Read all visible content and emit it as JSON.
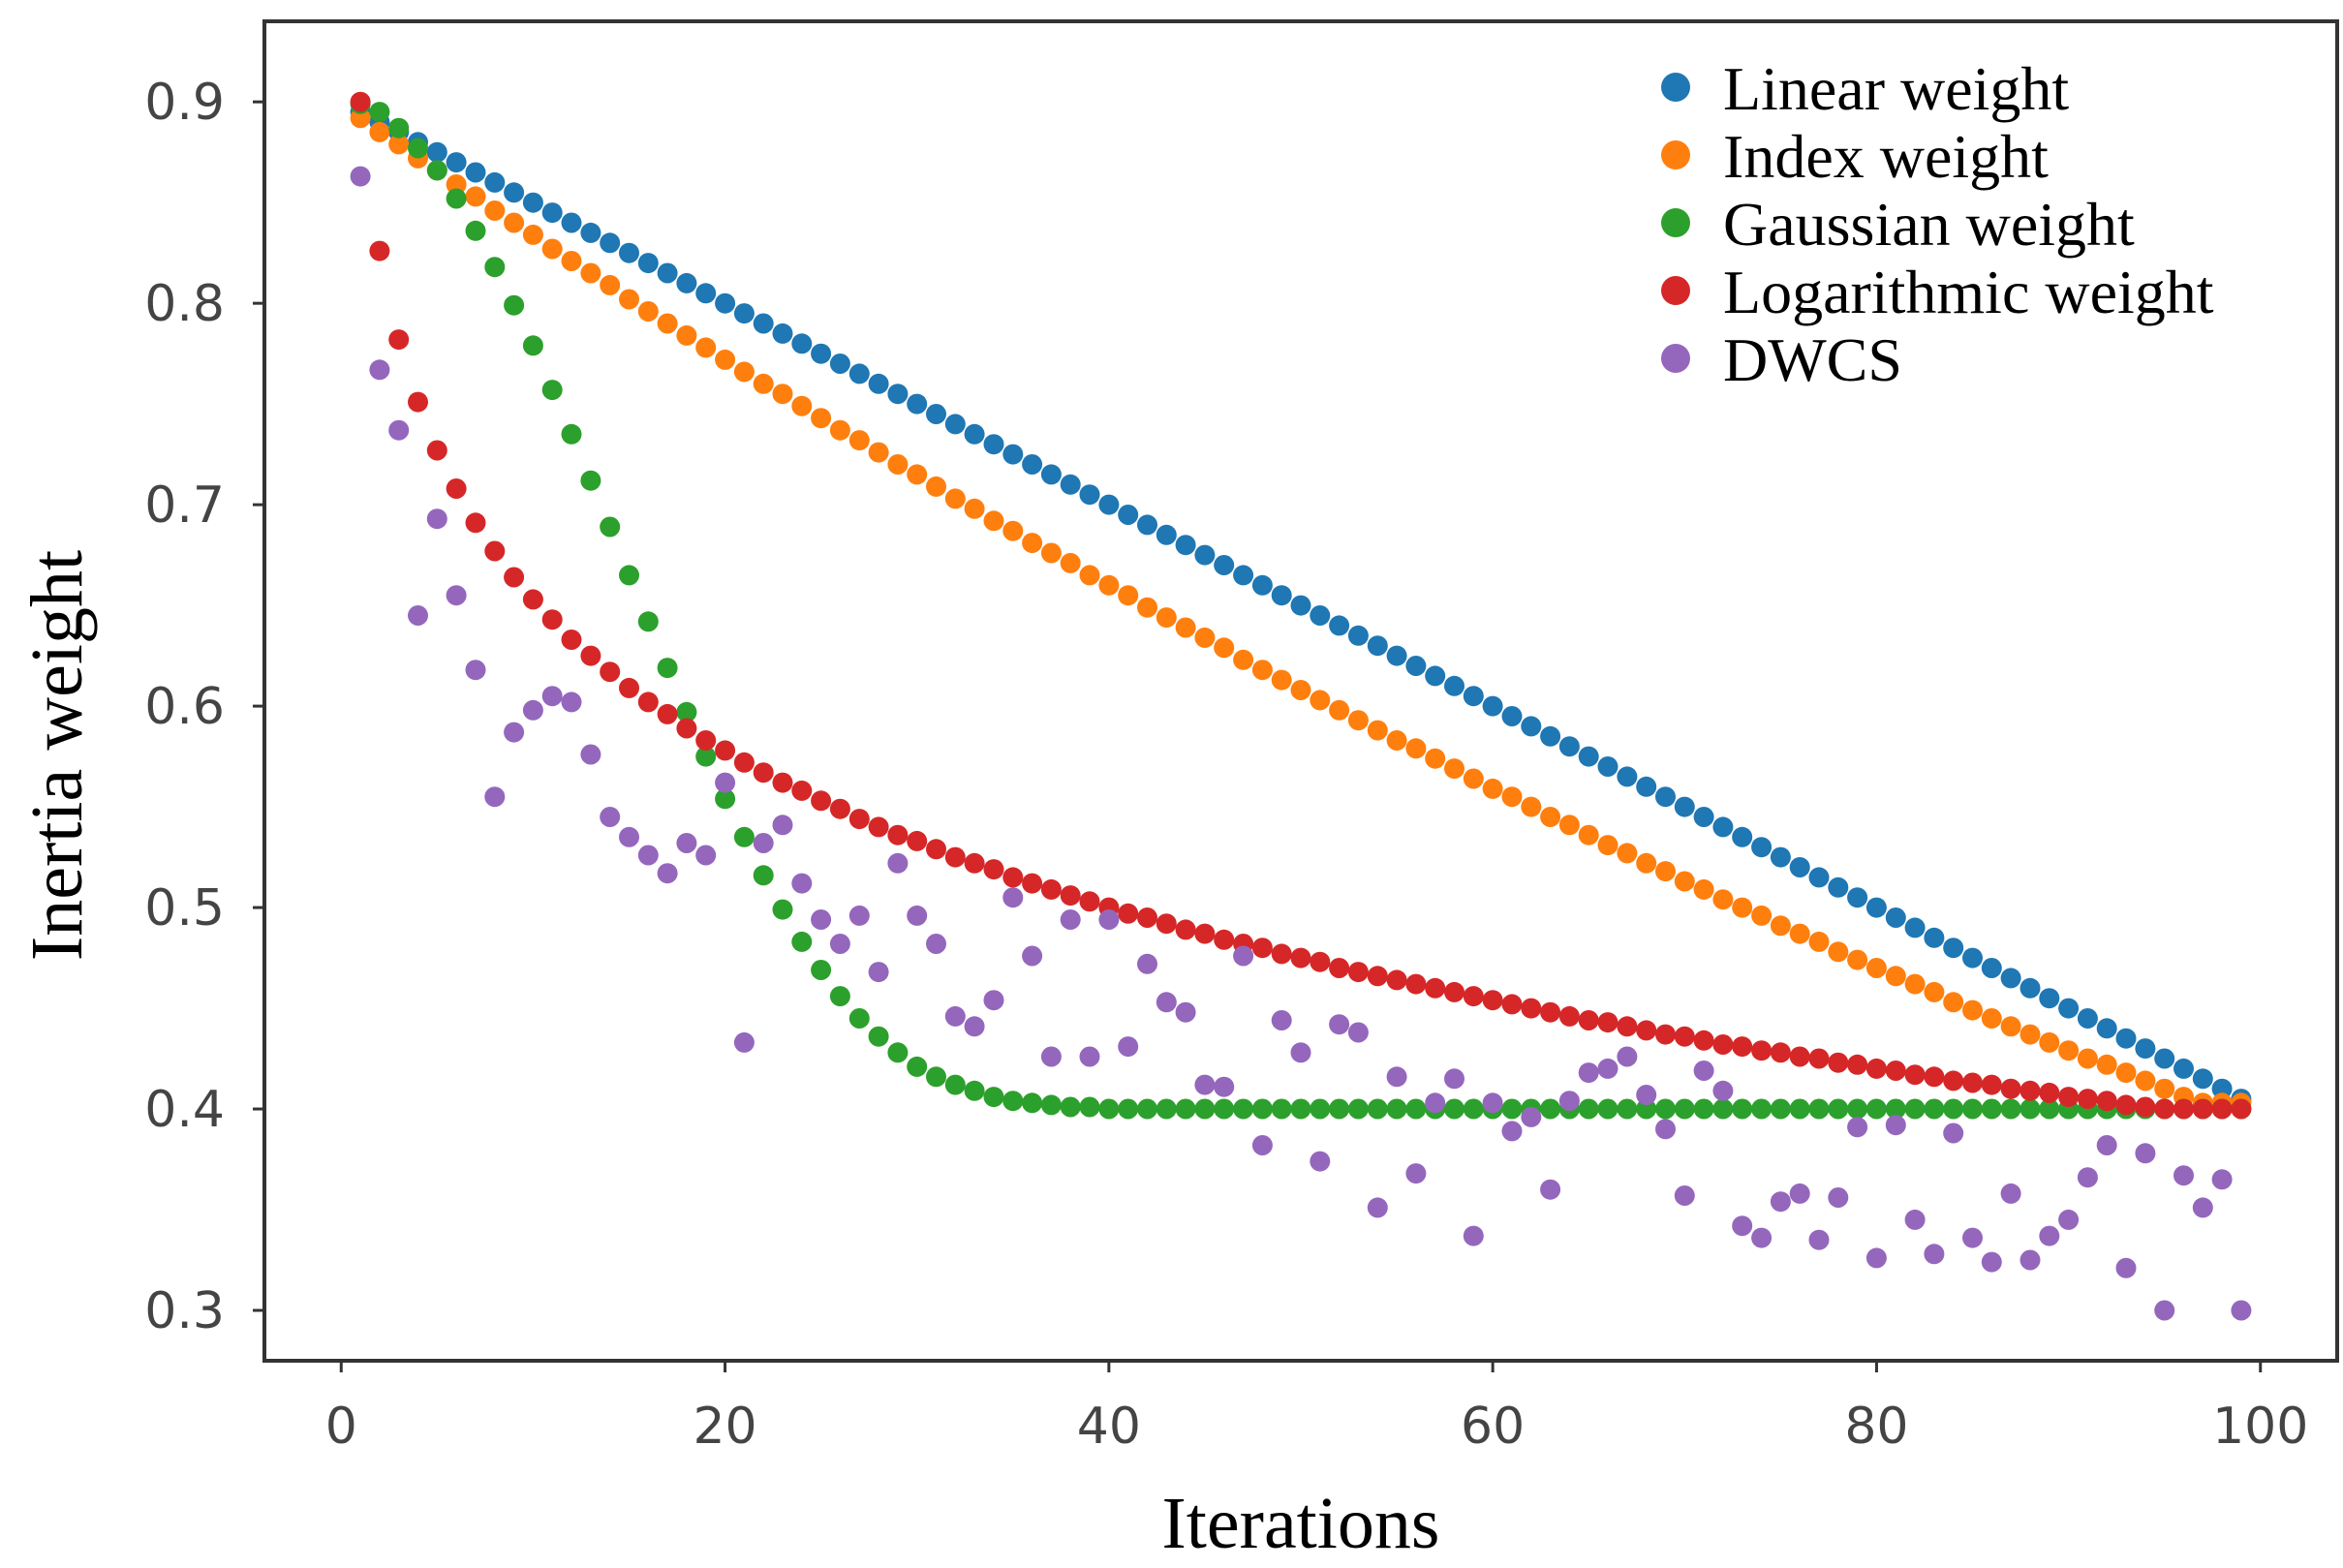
{
  "chart_data": {
    "type": "scatter",
    "title": "",
    "xlabel": "Iterations",
    "ylabel": "Inertia weight",
    "xlim": [
      -4,
      104
    ],
    "ylim": [
      0.275,
      0.94
    ],
    "xticks": [
      0,
      20,
      40,
      60,
      80,
      100
    ],
    "xtick_labels": [
      "0",
      "20",
      "40",
      "60",
      "80",
      "100"
    ],
    "yticks": [
      0.3,
      0.4,
      0.5,
      0.6,
      0.7,
      0.8,
      0.9
    ],
    "ytick_labels": [
      "0.3",
      "0.4",
      "0.5",
      "0.6",
      "0.7",
      "0.8",
      "0.9"
    ],
    "grid": false,
    "legend_position": "top-right",
    "series": [
      {
        "name": "Linear weight",
        "color": "#1f77b4",
        "x": [
          1,
          2,
          3,
          4,
          5,
          6,
          7,
          8,
          9,
          10,
          11,
          12,
          13,
          14,
          15,
          16,
          17,
          18,
          19,
          20,
          21,
          22,
          23,
          24,
          25,
          26,
          27,
          28,
          29,
          30,
          31,
          32,
          33,
          34,
          35,
          36,
          37,
          38,
          39,
          40,
          41,
          42,
          43,
          44,
          45,
          46,
          47,
          48,
          49,
          50,
          51,
          52,
          53,
          54,
          55,
          56,
          57,
          58,
          59,
          60,
          61,
          62,
          63,
          64,
          65,
          66,
          67,
          68,
          69,
          70,
          71,
          72,
          73,
          74,
          75,
          76,
          77,
          78,
          79,
          80,
          81,
          82,
          83,
          84,
          85,
          86,
          87,
          88,
          89,
          90,
          91,
          92,
          93,
          94,
          95,
          96,
          97,
          98,
          99
        ],
        "y": [
          0.895,
          0.89,
          0.885,
          0.88,
          0.875,
          0.87,
          0.865,
          0.86,
          0.855,
          0.85,
          0.845,
          0.84,
          0.835,
          0.83,
          0.825,
          0.82,
          0.815,
          0.81,
          0.805,
          0.8,
          0.795,
          0.79,
          0.785,
          0.78,
          0.775,
          0.77,
          0.765,
          0.76,
          0.755,
          0.75,
          0.745,
          0.74,
          0.735,
          0.73,
          0.725,
          0.72,
          0.715,
          0.71,
          0.705,
          0.7,
          0.695,
          0.69,
          0.685,
          0.68,
          0.675,
          0.67,
          0.665,
          0.66,
          0.655,
          0.65,
          0.645,
          0.64,
          0.635,
          0.63,
          0.625,
          0.62,
          0.615,
          0.61,
          0.605,
          0.6,
          0.595,
          0.59,
          0.585,
          0.58,
          0.575,
          0.57,
          0.565,
          0.56,
          0.555,
          0.55,
          0.545,
          0.54,
          0.535,
          0.53,
          0.525,
          0.52,
          0.515,
          0.51,
          0.505,
          0.5,
          0.495,
          0.49,
          0.485,
          0.48,
          0.475,
          0.47,
          0.465,
          0.46,
          0.455,
          0.45,
          0.445,
          0.44,
          0.435,
          0.43,
          0.425,
          0.42,
          0.415,
          0.41,
          0.405
        ]
      },
      {
        "name": "Index weight",
        "color": "#ff7f0e",
        "x": [
          1,
          2,
          3,
          4,
          5,
          6,
          7,
          8,
          9,
          10,
          11,
          12,
          13,
          14,
          15,
          16,
          17,
          18,
          19,
          20,
          21,
          22,
          23,
          24,
          25,
          26,
          27,
          28,
          29,
          30,
          31,
          32,
          33,
          34,
          35,
          36,
          37,
          38,
          39,
          40,
          41,
          42,
          43,
          44,
          45,
          46,
          47,
          48,
          49,
          50,
          51,
          52,
          53,
          54,
          55,
          56,
          57,
          58,
          59,
          60,
          61,
          62,
          63,
          64,
          65,
          66,
          67,
          68,
          69,
          70,
          71,
          72,
          73,
          74,
          75,
          76,
          77,
          78,
          79,
          80,
          81,
          82,
          83,
          84,
          85,
          86,
          87,
          88,
          89,
          90,
          91,
          92,
          93,
          94,
          95,
          96,
          97,
          98,
          99
        ],
        "y": [
          0.892,
          0.885,
          0.879,
          0.872,
          0.866,
          0.859,
          0.853,
          0.846,
          0.84,
          0.834,
          0.827,
          0.821,
          0.815,
          0.809,
          0.802,
          0.796,
          0.79,
          0.784,
          0.778,
          0.772,
          0.766,
          0.76,
          0.755,
          0.749,
          0.743,
          0.737,
          0.732,
          0.726,
          0.72,
          0.715,
          0.709,
          0.703,
          0.698,
          0.692,
          0.687,
          0.681,
          0.676,
          0.671,
          0.665,
          0.66,
          0.655,
          0.649,
          0.644,
          0.639,
          0.634,
          0.629,
          0.623,
          0.618,
          0.613,
          0.608,
          0.603,
          0.598,
          0.593,
          0.588,
          0.583,
          0.579,
          0.574,
          0.569,
          0.564,
          0.559,
          0.555,
          0.55,
          0.545,
          0.541,
          0.536,
          0.531,
          0.527,
          0.522,
          0.518,
          0.513,
          0.509,
          0.504,
          0.5,
          0.496,
          0.491,
          0.487,
          0.483,
          0.478,
          0.474,
          0.47,
          0.466,
          0.462,
          0.458,
          0.453,
          0.449,
          0.445,
          0.441,
          0.437,
          0.433,
          0.429,
          0.425,
          0.422,
          0.418,
          0.414,
          0.41,
          0.406,
          0.403,
          0.403,
          0.403
        ]
      },
      {
        "name": "Gaussian weight",
        "color": "#2ca02c",
        "x": [
          1,
          2,
          3,
          4,
          5,
          6,
          7,
          8,
          9,
          10,
          11,
          12,
          13,
          14,
          15,
          16,
          17,
          18,
          19,
          20,
          21,
          22,
          23,
          24,
          25,
          26,
          27,
          28,
          29,
          30,
          31,
          32,
          33,
          34,
          35,
          36,
          37,
          38,
          39,
          40,
          41,
          42,
          43,
          44,
          45,
          46,
          47,
          48,
          49,
          50,
          51,
          52,
          53,
          54,
          55,
          56,
          57,
          58,
          59,
          60,
          61,
          62,
          63,
          64,
          65,
          66,
          67,
          68,
          69,
          70,
          71,
          72,
          73,
          74,
          75,
          76,
          77,
          78,
          79,
          80,
          81,
          82,
          83,
          84,
          85,
          86,
          87,
          88,
          89,
          90,
          91,
          92,
          93,
          94,
          95,
          96,
          97,
          98,
          99
        ],
        "y": [
          0.899,
          0.895,
          0.887,
          0.877,
          0.866,
          0.852,
          0.836,
          0.818,
          0.799,
          0.779,
          0.757,
          0.735,
          0.712,
          0.689,
          0.665,
          0.642,
          0.619,
          0.597,
          0.575,
          0.554,
          0.535,
          0.516,
          0.499,
          0.483,
          0.469,
          0.456,
          0.445,
          0.436,
          0.428,
          0.421,
          0.416,
          0.412,
          0.409,
          0.406,
          0.404,
          0.403,
          0.402,
          0.401,
          0.401,
          0.4,
          0.4,
          0.4,
          0.4,
          0.4,
          0.4,
          0.4,
          0.4,
          0.4,
          0.4,
          0.4,
          0.4,
          0.4,
          0.4,
          0.4,
          0.4,
          0.4,
          0.4,
          0.4,
          0.4,
          0.4,
          0.4,
          0.4,
          0.4,
          0.4,
          0.4,
          0.4,
          0.4,
          0.4,
          0.4,
          0.4,
          0.4,
          0.4,
          0.4,
          0.4,
          0.4,
          0.4,
          0.4,
          0.4,
          0.4,
          0.4,
          0.4,
          0.4,
          0.4,
          0.4,
          0.4,
          0.4,
          0.4,
          0.4,
          0.4,
          0.4,
          0.4,
          0.4,
          0.4,
          0.4,
          0.4,
          0.4,
          0.4,
          0.4,
          0.4
        ]
      },
      {
        "name": "Logarithmic weight",
        "color": "#d62728",
        "x": [
          1,
          2,
          3,
          4,
          5,
          6,
          7,
          8,
          9,
          10,
          11,
          12,
          13,
          14,
          15,
          16,
          17,
          18,
          19,
          20,
          21,
          22,
          23,
          24,
          25,
          26,
          27,
          28,
          29,
          30,
          31,
          32,
          33,
          34,
          35,
          36,
          37,
          38,
          39,
          40,
          41,
          42,
          43,
          44,
          45,
          46,
          47,
          48,
          49,
          50,
          51,
          52,
          53,
          54,
          55,
          56,
          57,
          58,
          59,
          60,
          61,
          62,
          63,
          64,
          65,
          66,
          67,
          68,
          69,
          70,
          71,
          72,
          73,
          74,
          75,
          76,
          77,
          78,
          79,
          80,
          81,
          82,
          83,
          84,
          85,
          86,
          87,
          88,
          89,
          90,
          91,
          92,
          93,
          94,
          95,
          96,
          97,
          98,
          99
        ],
        "y": [
          0.9,
          0.826,
          0.782,
          0.751,
          0.727,
          0.708,
          0.691,
          0.677,
          0.664,
          0.653,
          0.643,
          0.633,
          0.625,
          0.617,
          0.609,
          0.602,
          0.596,
          0.589,
          0.583,
          0.578,
          0.572,
          0.567,
          0.562,
          0.558,
          0.553,
          0.549,
          0.544,
          0.54,
          0.536,
          0.533,
          0.529,
          0.525,
          0.522,
          0.519,
          0.515,
          0.512,
          0.509,
          0.506,
          0.503,
          0.5,
          0.497,
          0.495,
          0.492,
          0.489,
          0.487,
          0.484,
          0.482,
          0.48,
          0.477,
          0.475,
          0.473,
          0.47,
          0.468,
          0.466,
          0.464,
          0.462,
          0.46,
          0.458,
          0.456,
          0.454,
          0.452,
          0.45,
          0.448,
          0.446,
          0.444,
          0.443,
          0.441,
          0.439,
          0.437,
          0.436,
          0.434,
          0.432,
          0.431,
          0.429,
          0.428,
          0.426,
          0.425,
          0.423,
          0.422,
          0.42,
          0.419,
          0.417,
          0.416,
          0.414,
          0.413,
          0.412,
          0.41,
          0.409,
          0.408,
          0.406,
          0.405,
          0.404,
          0.402,
          0.401,
          0.4,
          0.4,
          0.4,
          0.4,
          0.4
        ]
      },
      {
        "name": "DWCS",
        "color": "#9467bd",
        "x": [
          1,
          2,
          3,
          4,
          5,
          6,
          7,
          8,
          9,
          10,
          11,
          12,
          13,
          14,
          15,
          16,
          17,
          18,
          19,
          20,
          21,
          22,
          23,
          24,
          25,
          26,
          27,
          28,
          29,
          30,
          31,
          32,
          33,
          34,
          35,
          36,
          37,
          38,
          39,
          40,
          41,
          42,
          43,
          44,
          45,
          46,
          47,
          48,
          49,
          50,
          51,
          52,
          53,
          54,
          55,
          56,
          57,
          58,
          59,
          60,
          61,
          62,
          63,
          64,
          65,
          66,
          67,
          68,
          69,
          70,
          71,
          72,
          73,
          74,
          75,
          76,
          77,
          78,
          79,
          80,
          81,
          82,
          83,
          84,
          85,
          86,
          87,
          88,
          89,
          90,
          91,
          92,
          93,
          94,
          95,
          96,
          97,
          98,
          99
        ],
        "y": [
          0.863,
          0.767,
          0.737,
          0.645,
          0.693,
          0.655,
          0.618,
          0.555,
          0.587,
          0.598,
          0.605,
          0.602,
          0.576,
          0.545,
          0.535,
          0.526,
          0.517,
          0.532,
          0.526,
          0.562,
          0.433,
          0.532,
          0.541,
          0.512,
          0.494,
          0.482,
          0.496,
          0.468,
          0.522,
          0.496,
          0.482,
          0.446,
          0.441,
          0.454,
          0.505,
          0.476,
          0.426,
          0.494,
          0.426,
          0.494,
          0.431,
          0.472,
          0.453,
          0.448,
          0.412,
          0.411,
          0.476,
          0.382,
          0.444,
          0.428,
          0.374,
          0.442,
          0.438,
          0.351,
          0.416,
          0.368,
          0.403,
          0.415,
          0.337,
          0.403,
          0.389,
          0.396,
          0.36,
          0.404,
          0.418,
          0.42,
          0.426,
          0.407,
          0.39,
          0.357,
          0.419,
          0.409,
          0.342,
          0.336,
          0.354,
          0.358,
          0.335,
          0.356,
          0.391,
          0.326,
          0.392,
          0.345,
          0.328,
          0.388,
          0.336,
          0.324,
          0.358,
          0.325,
          0.337,
          0.345,
          0.366,
          0.382,
          0.321,
          0.378,
          0.3,
          0.367,
          0.351,
          0.365,
          0.3
        ]
      }
    ]
  }
}
